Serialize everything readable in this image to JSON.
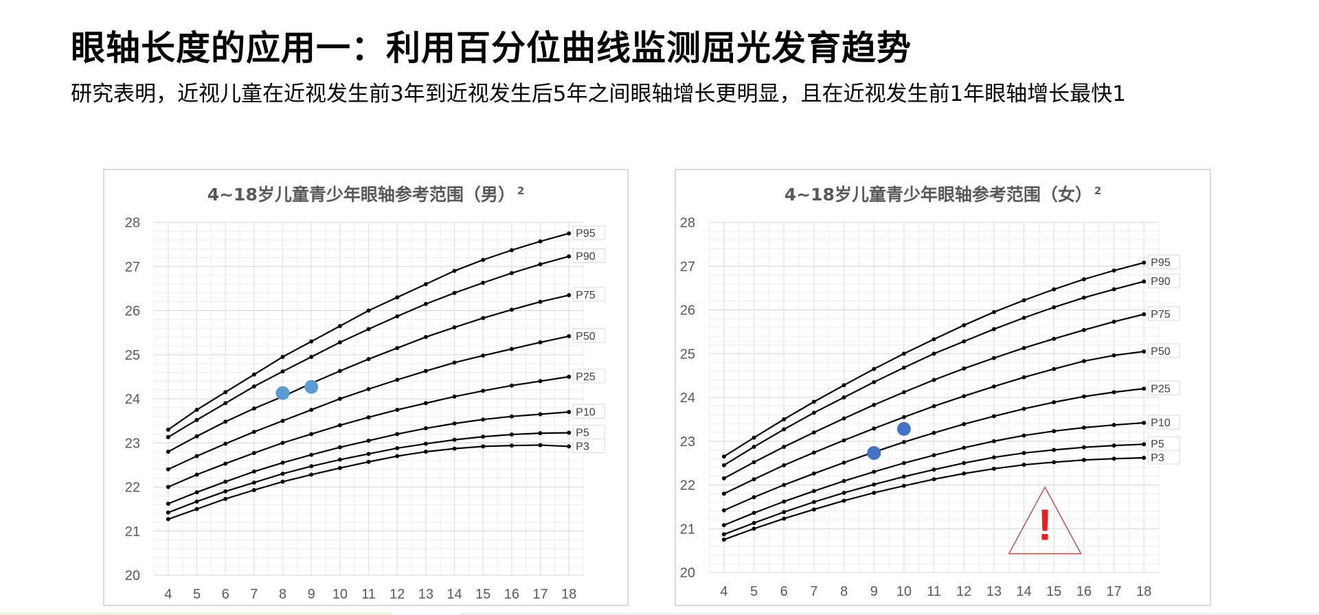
{
  "page": {
    "title": "眼轴长度的应用一：利用百分位曲线监测屈光发育趋势",
    "subtitle": "研究表明，近视儿童在近视发生前3年到近视发生后5年之间眼轴增长更明显，且在近视发生前1年眼轴增长最快1"
  },
  "chart_data": [
    {
      "type": "line",
      "title": "4~18岁儿童青少年眼轴参考范围（男）",
      "title_sup": "2",
      "x": [
        4,
        5,
        6,
        7,
        8,
        9,
        10,
        11,
        12,
        13,
        14,
        15,
        16,
        17,
        18
      ],
      "xlim": [
        3.5,
        18.5
      ],
      "ylim": [
        20,
        28
      ],
      "yticks": [
        20,
        21,
        22,
        23,
        24,
        25,
        26,
        27,
        28
      ],
      "grid": true,
      "series": [
        {
          "name": "P95",
          "values": [
            23.3,
            23.75,
            24.15,
            24.55,
            24.95,
            25.3,
            25.65,
            26.0,
            26.3,
            26.6,
            26.9,
            27.15,
            27.37,
            27.57,
            27.75
          ]
        },
        {
          "name": "P90",
          "values": [
            23.13,
            23.52,
            23.9,
            24.28,
            24.62,
            24.95,
            25.28,
            25.58,
            25.87,
            26.15,
            26.4,
            26.63,
            26.85,
            27.05,
            27.23
          ]
        },
        {
          "name": "P75",
          "values": [
            22.8,
            23.15,
            23.48,
            23.78,
            24.05,
            24.35,
            24.63,
            24.9,
            25.15,
            25.4,
            25.62,
            25.83,
            26.02,
            26.2,
            26.35
          ]
        },
        {
          "name": "P50",
          "values": [
            22.4,
            22.7,
            22.98,
            23.25,
            23.5,
            23.75,
            24.0,
            24.22,
            24.43,
            24.63,
            24.82,
            24.98,
            25.13,
            25.28,
            25.42
          ]
        },
        {
          "name": "P25",
          "values": [
            22.0,
            22.28,
            22.53,
            22.77,
            23.0,
            23.2,
            23.4,
            23.58,
            23.75,
            23.9,
            24.05,
            24.18,
            24.3,
            24.4,
            24.5
          ]
        },
        {
          "name": "P10",
          "values": [
            21.62,
            21.88,
            22.12,
            22.35,
            22.55,
            22.73,
            22.9,
            23.05,
            23.2,
            23.33,
            23.44,
            23.53,
            23.6,
            23.65,
            23.7
          ]
        },
        {
          "name": "P5",
          "values": [
            21.42,
            21.67,
            21.9,
            22.1,
            22.3,
            22.47,
            22.62,
            22.75,
            22.88,
            22.98,
            23.07,
            23.14,
            23.19,
            23.22,
            23.23
          ]
        },
        {
          "name": "P3",
          "values": [
            21.27,
            21.5,
            21.73,
            21.93,
            22.12,
            22.28,
            22.43,
            22.57,
            22.7,
            22.8,
            22.87,
            22.92,
            22.94,
            22.95,
            22.92
          ]
        }
      ],
      "markers": [
        {
          "x": 8,
          "y": 24.13,
          "color": "#5b9bd5"
        },
        {
          "x": 9,
          "y": 24.27,
          "color": "#5b9bd5"
        }
      ],
      "line_color": "#000000"
    },
    {
      "type": "line",
      "title": "4~18岁儿童青少年眼轴参考范围（女）",
      "title_sup": "2",
      "x": [
        4,
        5,
        6,
        7,
        8,
        9,
        10,
        11,
        12,
        13,
        14,
        15,
        16,
        17,
        18
      ],
      "xlim": [
        3.5,
        18.5
      ],
      "ylim": [
        20,
        28
      ],
      "yticks": [
        20,
        21,
        22,
        23,
        24,
        25,
        26,
        27,
        28
      ],
      "grid": true,
      "series": [
        {
          "name": "P95",
          "values": [
            22.65,
            23.08,
            23.5,
            23.9,
            24.28,
            24.65,
            25.0,
            25.33,
            25.65,
            25.95,
            26.22,
            26.47,
            26.7,
            26.9,
            27.08
          ]
        },
        {
          "name": "P90",
          "values": [
            22.45,
            22.87,
            23.27,
            23.65,
            24.0,
            24.35,
            24.68,
            25.0,
            25.28,
            25.56,
            25.82,
            26.06,
            26.28,
            26.47,
            26.65
          ]
        },
        {
          "name": "P75",
          "values": [
            22.15,
            22.52,
            22.87,
            23.2,
            23.52,
            23.83,
            24.12,
            24.4,
            24.66,
            24.9,
            25.13,
            25.34,
            25.54,
            25.73,
            25.9
          ]
        },
        {
          "name": "P50",
          "values": [
            21.8,
            22.13,
            22.45,
            22.74,
            23.02,
            23.29,
            23.55,
            23.8,
            24.03,
            24.25,
            24.46,
            24.65,
            24.83,
            24.96,
            25.05
          ]
        },
        {
          "name": "P25",
          "values": [
            21.42,
            21.72,
            22.0,
            22.26,
            22.51,
            22.75,
            22.98,
            23.19,
            23.39,
            23.57,
            23.74,
            23.89,
            24.02,
            24.12,
            24.2
          ]
        },
        {
          "name": "P10",
          "values": [
            21.08,
            21.36,
            21.62,
            21.86,
            22.09,
            22.3,
            22.5,
            22.68,
            22.85,
            23.0,
            23.13,
            23.23,
            23.31,
            23.37,
            23.42
          ]
        },
        {
          "name": "P5",
          "values": [
            20.87,
            21.13,
            21.38,
            21.61,
            21.82,
            22.01,
            22.19,
            22.35,
            22.5,
            22.63,
            22.73,
            22.8,
            22.86,
            22.9,
            22.93
          ]
        },
        {
          "name": "P3",
          "values": [
            20.75,
            21.0,
            21.23,
            21.44,
            21.64,
            21.82,
            21.98,
            22.13,
            22.26,
            22.37,
            22.46,
            22.52,
            22.57,
            22.6,
            22.62
          ]
        }
      ],
      "markers": [
        {
          "x": 9,
          "y": 22.73,
          "color": "#4472c4"
        },
        {
          "x": 10,
          "y": 23.28,
          "color": "#4472c4"
        }
      ],
      "warning": {
        "symbol": "!",
        "x_center": 14.7,
        "y_top": 21.95,
        "y_bottom": 20.43,
        "half_width": 1.2
      },
      "line_color": "#000000"
    }
  ]
}
